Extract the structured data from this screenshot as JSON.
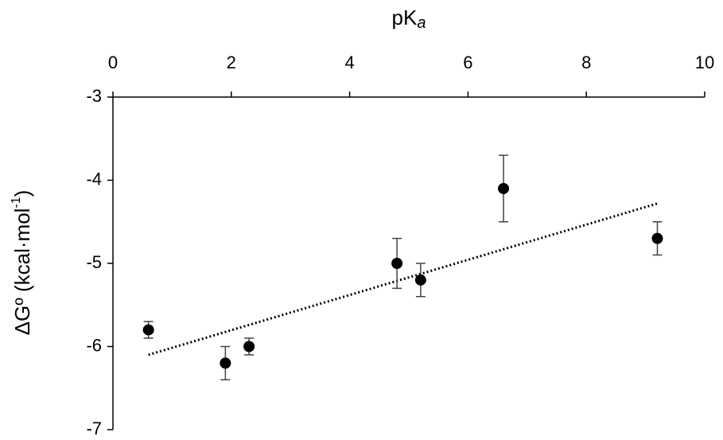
{
  "chart_data": {
    "type": "scatter",
    "x_label": {
      "text": "pK",
      "subscript": "a"
    },
    "y_label": {
      "text": "ΔGº (kcal·mol",
      "superscript": "-1",
      "suffix": ")"
    },
    "xlim": [
      0,
      10
    ],
    "xticks": [
      0,
      2,
      4,
      6,
      8,
      10
    ],
    "ylim": [
      -7,
      -3
    ],
    "yticks": [
      -3,
      -4,
      -5,
      -6,
      -7
    ],
    "series": [
      {
        "color": "#000000",
        "x": [
          0.6,
          1.9,
          2.3,
          4.8,
          5.2,
          6.6,
          9.2
        ],
        "values": [
          -5.8,
          -6.2,
          -6.0,
          -5.0,
          -5.2,
          -4.1,
          -4.7
        ],
        "errors": [
          0.1,
          0.2,
          0.1,
          0.3,
          0.2,
          0.4,
          0.2
        ]
      }
    ],
    "trendline": {
      "x": [
        0.6,
        9.2
      ],
      "y": [
        -6.1,
        -4.28
      ],
      "color": "#000000"
    }
  }
}
